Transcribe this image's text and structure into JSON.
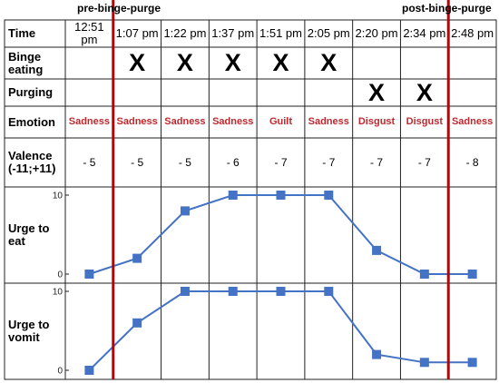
{
  "annotations": [
    "pre-binge-purge",
    "post-binge-purge"
  ],
  "table": {
    "row_labels": [
      "Time",
      "Binge eating",
      "Purging",
      "Emotion",
      "Valence (-11;+11)",
      "Urge to eat",
      "Urge to vomit"
    ],
    "times": [
      "12:51 pm",
      "1:07 pm",
      "1:22 pm",
      "1:37 pm",
      "1:51 pm",
      "2:05 pm",
      "2:20 pm",
      "2:34 pm",
      "2:48 pm"
    ],
    "binge_eating": [
      null,
      "X",
      "X",
      "X",
      "X",
      "X",
      null,
      null,
      null
    ],
    "purging": [
      null,
      null,
      null,
      null,
      null,
      null,
      "X",
      "X",
      null
    ],
    "emotion": [
      "Sadness",
      "Sadness",
      "Sadness",
      "Sadness",
      "Guilt",
      "Sadness",
      "Disgust",
      "Disgust",
      "Sadness"
    ],
    "valence": [
      "- 5",
      "- 5",
      "- 5",
      "- 6",
      "- 7",
      "- 7",
      "- 7",
      "- 7",
      "- 8"
    ]
  },
  "chart_data": [
    {
      "type": "line",
      "values": [
        0,
        2,
        8,
        10,
        10,
        10,
        3,
        0,
        0
      ],
      "color": "#4472c4",
      "ylim": [
        0,
        10
      ],
      "yticks": [
        0,
        10
      ]
    },
    {
      "type": "line",
      "values": [
        0,
        6,
        10,
        10,
        10,
        10,
        2,
        1,
        1
      ],
      "color": "#4472c4",
      "ylim": [
        0,
        10
      ],
      "yticks": [
        0,
        10
      ]
    }
  ]
}
